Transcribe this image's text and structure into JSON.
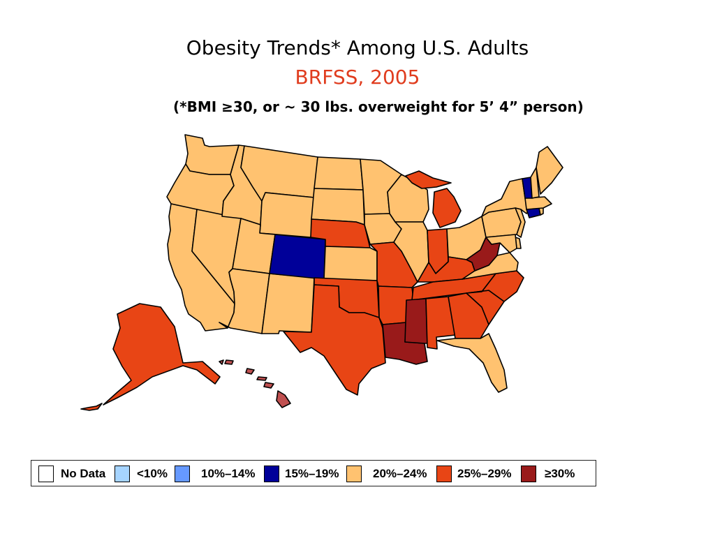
{
  "title": "Obesity Trends* Among U.S. Adults",
  "subtitle": "BRFSS, 2005",
  "note": "(*BMI ≥30, or ~ 30 lbs. overweight for 5’ 4” person)",
  "colors": {
    "no_data": "#ffffff",
    "lt10": "#a6d4ff",
    "p10_14": "#6699ff",
    "p15_19": "#000099",
    "p20_24": "#ffc270",
    "p25_29": "#e84515",
    "ge30": "#991a1a",
    "hawaii": "#c05050",
    "title_accent": "#e03c1e"
  },
  "legend": [
    {
      "label": "No Data",
      "color": "#ffffff"
    },
    {
      "label": "<10%",
      "color": "#a6d4ff"
    },
    {
      "label": "10%–14%",
      "color": "#6699ff"
    },
    {
      "label": "15%–19%",
      "color": "#000099"
    },
    {
      "label": "20%–24%",
      "color": "#ffc270"
    },
    {
      "label": "25%–29%",
      "color": "#e84515"
    },
    {
      "label": "≥30%",
      "color": "#991a1a"
    }
  ],
  "states": {
    "WA": "20%–24%",
    "OR": "20%–24%",
    "CA": "20%–24%",
    "NV": "20%–24%",
    "ID": "20%–24%",
    "MT": "20%–24%",
    "WY": "20%–24%",
    "UT": "20%–24%",
    "AZ": "20%–24%",
    "NM": "20%–24%",
    "CO": "15%–19%",
    "ND": "20%–24%",
    "SD": "20%–24%",
    "NE": "25%–29%",
    "KS": "20%–24%",
    "OK": "25%–29%",
    "TX": "25%–29%",
    "MN": "20%–24%",
    "IA": "20%–24%",
    "MO": "25%–29%",
    "AR": "25%–29%",
    "LA": "≥30%",
    "WI": "20%–24%",
    "IL": "20%–24%",
    "MI": "25%–29%",
    "IN": "25%–29%",
    "OH": "20%–24%",
    "KY": "25%–29%",
    "TN": "25%–29%",
    "MS": "≥30%",
    "AL": "25%–29%",
    "GA": "25%–29%",
    "FL": "20%–24%",
    "SC": "25%–29%",
    "NC": "25%–29%",
    "VA": "20%–24%",
    "WV": "≥30%",
    "PA": "20%–24%",
    "NY": "20%–24%",
    "NJ": "20%–24%",
    "DE": "20%–24%",
    "MD": "20%–24%",
    "CT": "15%–19%",
    "RI": "20%–24%",
    "MA": "20%–24%",
    "VT": "15%–19%",
    "NH": "20%–24%",
    "ME": "20%–24%",
    "AK": "25%–29%",
    "HI": "25%–29%"
  }
}
